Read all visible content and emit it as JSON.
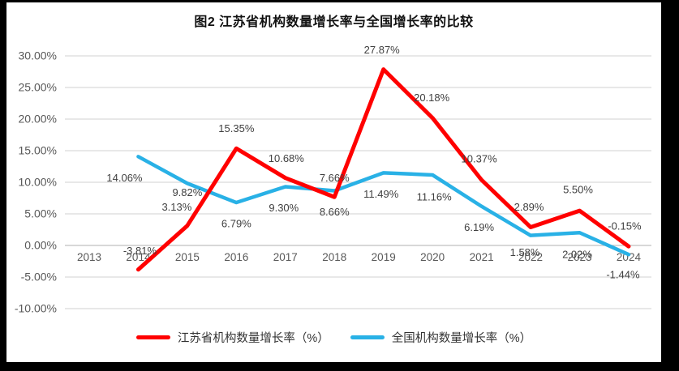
{
  "page": {
    "background_color": "#000000",
    "canvas_color": "#FFFFFF"
  },
  "chart_data": {
    "type": "line",
    "title": "图2  江苏省机构数量增长率与全国增长率的比较",
    "categories": [
      "2013",
      "2014",
      "2015",
      "2016",
      "2017",
      "2018",
      "2019",
      "2020",
      "2021",
      "2022",
      "2023",
      "2024"
    ],
    "series": [
      {
        "name": "江苏省机构数量增长率（%）",
        "color": "#FF0000",
        "values": [
          null,
          -3.81,
          3.13,
          15.35,
          10.68,
          7.66,
          27.87,
          20.18,
          10.37,
          2.89,
          5.5,
          -0.15
        ],
        "labels": [
          null,
          "-3.81%",
          "3.13%",
          "15.35%",
          "10.68%",
          "7.66%",
          "27.87%",
          "20.18%",
          "10.37%",
          "2.89%",
          "5.50%",
          "-0.15%"
        ],
        "label_side": "above",
        "label_offsets": [
          null,
          [
            2,
            -23
          ],
          [
            -13,
            -23
          ],
          [
            0,
            -25
          ],
          [
            1,
            -24
          ],
          [
            0,
            -24
          ],
          [
            -2,
            -24
          ],
          [
            -1,
            -25
          ],
          [
            -3,
            -26
          ],
          [
            -2,
            -25
          ],
          [
            -2,
            -26
          ],
          [
            -5,
            -25
          ]
        ]
      },
      {
        "name": "全国机构数量增长率（%）",
        "color": "#29B1E6",
        "values": [
          null,
          14.06,
          9.82,
          6.79,
          9.3,
          8.66,
          11.49,
          11.16,
          6.19,
          1.58,
          2.02,
          -1.44
        ],
        "labels": [
          null,
          "14.06%",
          "9.82%",
          "6.79%",
          "9.30%",
          "8.66%",
          "11.49%",
          "11.16%",
          "6.19%",
          "1.58%",
          "2.02%",
          "-1.44%"
        ],
        "label_side": "below",
        "label_offsets": [
          null,
          [
            -17,
            26
          ],
          [
            0,
            11
          ],
          [
            0,
            26
          ],
          [
            -2,
            26
          ],
          [
            0,
            26
          ],
          [
            -3,
            26
          ],
          [
            2,
            27
          ],
          [
            -3,
            26
          ],
          [
            -7,
            21
          ],
          [
            -3,
            27
          ],
          [
            -7,
            25
          ]
        ]
      }
    ],
    "yticks": {
      "values": [
        30,
        25,
        20,
        15,
        10,
        5,
        0,
        -5,
        -10
      ],
      "labels": [
        "30.00%",
        "25.00%",
        "20.00%",
        "15.00%",
        "10.00%",
        "5.00%",
        "0.00%",
        "-5.00%",
        "-10.00%"
      ]
    },
    "ylim": [
      -10,
      30
    ],
    "grid": true,
    "legend_position": "bottom",
    "gridline_color": "#D9D9D9",
    "zero_line_color": "#C0C0C0",
    "axis_label_color": "#595959",
    "data_label_color": "#404040"
  }
}
